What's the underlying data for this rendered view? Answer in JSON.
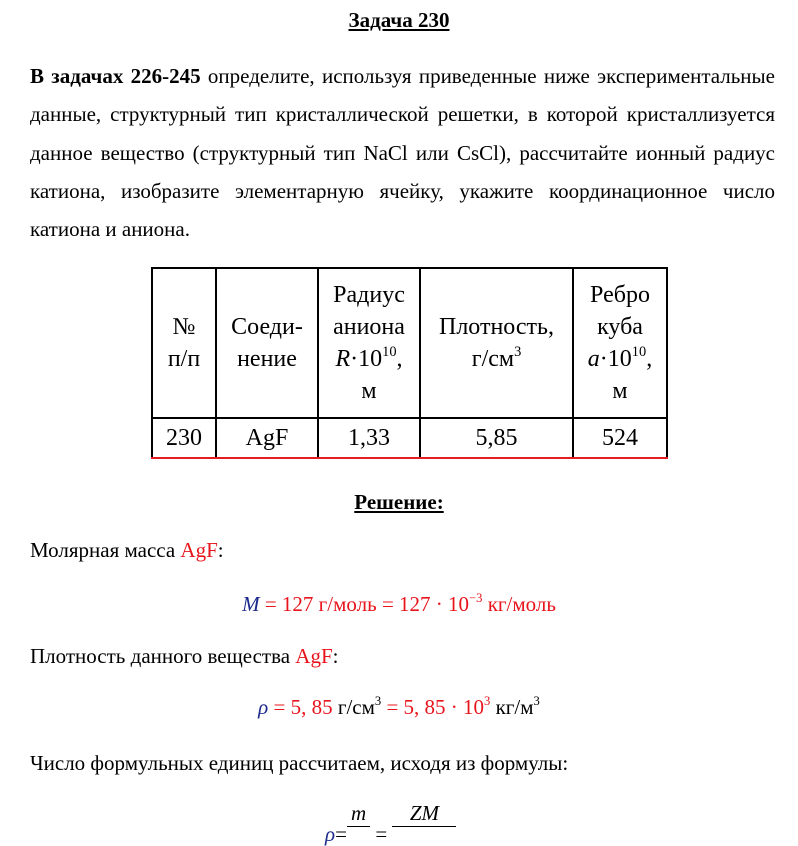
{
  "title": "Задача 230",
  "intro": {
    "bold": "В задачах 226-245",
    "text": " определите, используя приведенные ниже экспериментальные данные, структурный тип кристаллической решетки, в которой кристаллизуется данное вещество (структурный тип NaCl или CsCl), рассчитайте ионный радиус катиона, изобразите элементарную ячейку, укажите координационное число катиона и аниона."
  },
  "table": {
    "headers": {
      "num": [
        "№",
        "п/п"
      ],
      "compound": [
        "Соеди-",
        "нение"
      ],
      "radius": [
        "Радиус",
        "аниона",
        "R",
        "·10",
        "10",
        ",",
        "м"
      ],
      "density": [
        "Плотность,",
        "г/см",
        "3"
      ],
      "edge": [
        "Ребро",
        "куба",
        "a",
        "·10",
        "10",
        ",",
        "м"
      ]
    },
    "row": {
      "num": "230",
      "compound": "AgF",
      "radius": "1,33",
      "density": "5,85",
      "edge": "524"
    }
  },
  "solution_title": "Решение:",
  "molar_mass": {
    "label": "Молярная масса ",
    "substance": "AgF",
    "colon": ":",
    "formula": {
      "sym": "M",
      "eq": " = ",
      "v1": "127 г/моль = 127 · 10",
      "exp": "−3",
      "unit": " кг/моль"
    }
  },
  "density": {
    "label": "Плотность данного вещества ",
    "substance": "AgF",
    "colon": ":",
    "formula": {
      "sym": "ρ",
      "eq1": " = 5, 85 ",
      "u1": "г/см",
      "u1exp": "3",
      "eq2": " = 5, 85 · 10",
      "exp": "3",
      "u2": " кг/м",
      "u2exp": "3"
    }
  },
  "formula_units": {
    "label": "Число формульных единиц рассчитаем, исходя из формулы:",
    "formula": {
      "sym": "ρ",
      "eq": "=",
      "num1": "m",
      "eq2": " = ",
      "num2": "ZM"
    }
  },
  "colors": {
    "accent": "#e8141c",
    "symbol": "#1c2a8c"
  }
}
